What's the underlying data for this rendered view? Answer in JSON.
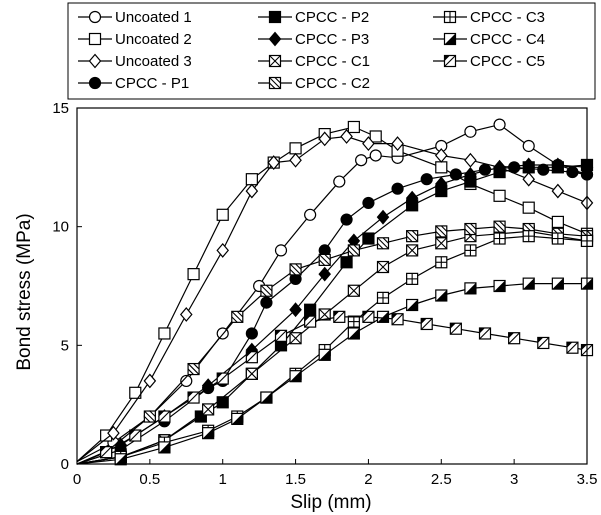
{
  "chart_data": {
    "type": "line",
    "xlabel": "Slip (mm)",
    "ylabel": "Bond stress (MPa)",
    "xlim": [
      0,
      3.5
    ],
    "ylim": [
      0,
      15
    ],
    "xticks": [
      "0",
      "0.5",
      "1",
      "1.5",
      "2",
      "2.5",
      "3",
      "3.5"
    ],
    "yticks": [
      "0",
      "5",
      "10",
      "15"
    ],
    "grid": false,
    "legend_position": "top",
    "series": [
      {
        "name": "Uncoated 1",
        "marker": "circle-open",
        "x": [
          0,
          0.25,
          0.5,
          0.75,
          1.0,
          1.25,
          1.4,
          1.6,
          1.8,
          1.95,
          2.05,
          2.2,
          2.5,
          2.7,
          2.9,
          3.1,
          3.3,
          3.5
        ],
        "y": [
          0.1,
          0.9,
          2.0,
          3.5,
          5.5,
          7.5,
          9.0,
          10.5,
          11.9,
          12.8,
          13.0,
          12.9,
          13.4,
          14.0,
          14.3,
          13.4,
          12.6,
          12.2
        ]
      },
      {
        "name": "Uncoated 2",
        "marker": "square-open",
        "x": [
          0,
          0.2,
          0.4,
          0.6,
          0.8,
          1.0,
          1.2,
          1.35,
          1.5,
          1.7,
          1.9,
          2.05,
          2.2,
          2.5,
          2.7,
          2.9,
          3.1,
          3.3,
          3.5
        ],
        "y": [
          0.1,
          1.2,
          3.0,
          5.5,
          8.0,
          10.5,
          12.0,
          12.7,
          13.3,
          13.9,
          14.2,
          13.8,
          13.2,
          12.5,
          11.8,
          11.3,
          10.8,
          10.2,
          9.7
        ]
      },
      {
        "name": "Uncoated 3",
        "marker": "diamond-open",
        "x": [
          0,
          0.25,
          0.5,
          0.75,
          1.0,
          1.2,
          1.35,
          1.5,
          1.7,
          1.85,
          2.0,
          2.2,
          2.5,
          2.7,
          2.9,
          3.1,
          3.3,
          3.5
        ],
        "y": [
          0.1,
          1.3,
          3.5,
          6.3,
          9.0,
          11.5,
          12.7,
          12.8,
          13.7,
          13.8,
          13.5,
          13.5,
          13.0,
          12.8,
          12.5,
          12.0,
          11.5,
          11.0
        ]
      },
      {
        "name": "CPCC - P1",
        "marker": "circle-filled",
        "x": [
          0,
          0.3,
          0.6,
          0.9,
          1.0,
          1.2,
          1.3,
          1.5,
          1.7,
          1.85,
          2.0,
          2.2,
          2.4,
          2.6,
          2.8,
          3.0,
          3.2,
          3.4,
          3.5
        ],
        "y": [
          0,
          0.6,
          1.8,
          3.2,
          3.5,
          5.5,
          6.8,
          7.8,
          9.0,
          10.3,
          11.0,
          11.6,
          12.0,
          12.2,
          12.4,
          12.5,
          12.4,
          12.3,
          12.2
        ]
      },
      {
        "name": "CPCC - P2",
        "marker": "square-filled",
        "x": [
          0,
          0.3,
          0.6,
          0.85,
          1.0,
          1.2,
          1.4,
          1.6,
          1.85,
          2.0,
          2.3,
          2.5,
          2.7,
          2.9,
          3.1,
          3.3,
          3.5
        ],
        "y": [
          0,
          0.3,
          1.0,
          2.0,
          2.6,
          3.8,
          5.0,
          6.5,
          8.5,
          9.5,
          10.9,
          11.5,
          11.9,
          12.3,
          12.5,
          12.5,
          12.6
        ]
      },
      {
        "name": "CPCC - P3",
        "marker": "diamond-filled",
        "x": [
          0,
          0.3,
          0.6,
          0.9,
          1.2,
          1.5,
          1.7,
          1.9,
          2.1,
          2.3,
          2.5,
          2.7,
          2.9,
          3.1,
          3.3,
          3.5
        ],
        "y": [
          0,
          0.8,
          2.0,
          3.3,
          4.8,
          6.5,
          8.0,
          9.4,
          10.4,
          11.2,
          11.8,
          12.2,
          12.5,
          12.6,
          12.6,
          12.5
        ]
      },
      {
        "name": "CPCC - C1",
        "marker": "square-x",
        "x": [
          0,
          0.3,
          0.6,
          0.9,
          1.2,
          1.5,
          1.7,
          1.9,
          2.1,
          2.3,
          2.5,
          2.7,
          2.9,
          3.1,
          3.3,
          3.5
        ],
        "y": [
          0,
          0.3,
          1.0,
          2.3,
          3.8,
          5.3,
          6.3,
          7.3,
          8.3,
          9.0,
          9.3,
          9.6,
          9.7,
          9.8,
          9.6,
          9.4
        ]
      },
      {
        "name": "CPCC - C2",
        "marker": "square-diag",
        "x": [
          0,
          0.2,
          0.5,
          0.8,
          1.1,
          1.3,
          1.5,
          1.7,
          1.9,
          2.1,
          2.3,
          2.5,
          2.7,
          2.9,
          3.1,
          3.3,
          3.5
        ],
        "y": [
          0,
          0.5,
          2.0,
          4.0,
          6.2,
          7.3,
          8.2,
          8.6,
          9.0,
          9.3,
          9.6,
          9.8,
          9.9,
          10.0,
          9.9,
          9.7,
          9.6
        ]
      },
      {
        "name": "CPCC - C3",
        "marker": "square-plus",
        "x": [
          0,
          0.3,
          0.6,
          0.9,
          1.1,
          1.3,
          1.5,
          1.7,
          1.9,
          2.1,
          2.3,
          2.5,
          2.7,
          2.9,
          3.1,
          3.3,
          3.5
        ],
        "y": [
          0,
          0.3,
          0.9,
          1.4,
          2.0,
          2.8,
          3.8,
          4.8,
          6.0,
          7.0,
          7.8,
          8.5,
          9.0,
          9.5,
          9.6,
          9.5,
          9.4
        ]
      },
      {
        "name": "CPCC - C4",
        "marker": "square-half",
        "x": [
          0,
          0.3,
          0.6,
          0.9,
          1.1,
          1.3,
          1.5,
          1.7,
          1.9,
          2.1,
          2.3,
          2.5,
          2.7,
          2.9,
          3.1,
          3.3,
          3.5
        ],
        "y": [
          0,
          0.2,
          0.7,
          1.3,
          1.9,
          2.8,
          3.7,
          4.6,
          5.5,
          6.2,
          6.7,
          7.1,
          7.4,
          7.5,
          7.6,
          7.6,
          7.6
        ]
      },
      {
        "name": "CPCC - C5",
        "marker": "square-slash",
        "x": [
          0,
          0.2,
          0.4,
          0.6,
          0.8,
          1.0,
          1.2,
          1.4,
          1.6,
          1.8,
          2.0,
          2.2,
          2.4,
          2.6,
          2.8,
          3.0,
          3.2,
          3.4,
          3.5
        ],
        "y": [
          0,
          0.5,
          1.2,
          2.0,
          2.8,
          3.6,
          4.5,
          5.4,
          6.0,
          6.2,
          6.2,
          6.1,
          5.9,
          5.7,
          5.5,
          5.3,
          5.1,
          4.9,
          4.8
        ]
      }
    ]
  }
}
